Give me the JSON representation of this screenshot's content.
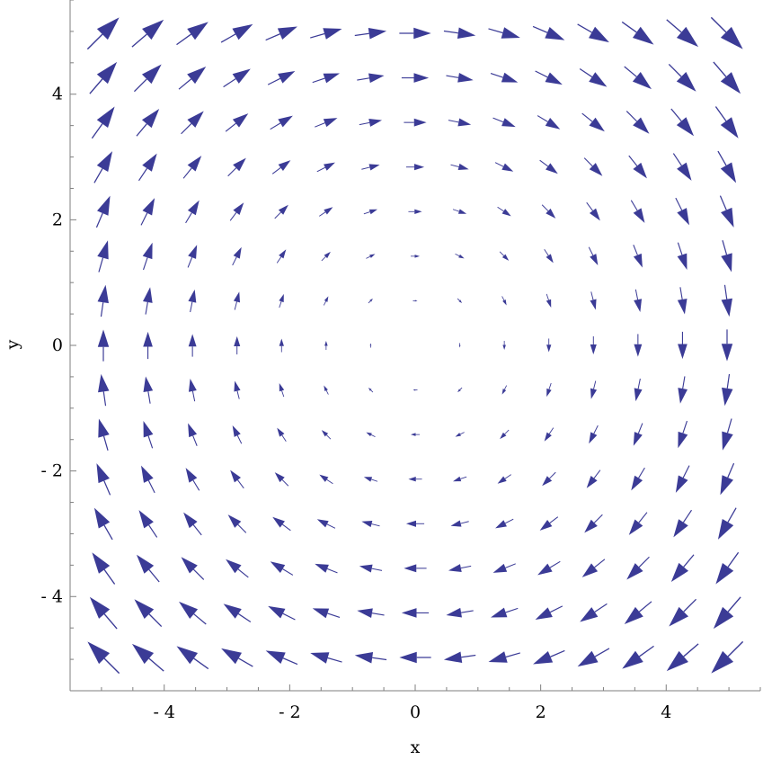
{
  "chart_data": {
    "type": "vector_field",
    "field": {
      "u": "y",
      "v": "-x"
    },
    "x_samples": [
      -4.97,
      -4.26,
      -3.55,
      -2.84,
      -2.13,
      -1.42,
      -0.71,
      0,
      0.71,
      1.42,
      2.13,
      2.84,
      3.55,
      4.26,
      4.97
    ],
    "y_samples": [
      -4.97,
      -4.26,
      -3.55,
      -2.84,
      -2.13,
      -1.42,
      -0.71,
      0,
      0.71,
      1.42,
      2.13,
      2.84,
      3.55,
      4.26,
      4.97
    ],
    "xlim": [
      -5.5,
      5.5
    ],
    "ylim": [
      -5.5,
      5.5
    ],
    "xticks": [
      -4,
      -2,
      0,
      2,
      4
    ],
    "yticks": [
      -4,
      -2,
      0,
      2,
      4
    ],
    "xtick_labels": [
      "- 4",
      "- 2",
      "0",
      "2",
      "4"
    ],
    "ytick_labels": [
      "- 4",
      "- 2",
      "0",
      "2",
      "4"
    ],
    "xlabel": "x",
    "ylabel": "y",
    "arrow_color": "#3b3b96",
    "axis_color": "#7f7f7f"
  }
}
